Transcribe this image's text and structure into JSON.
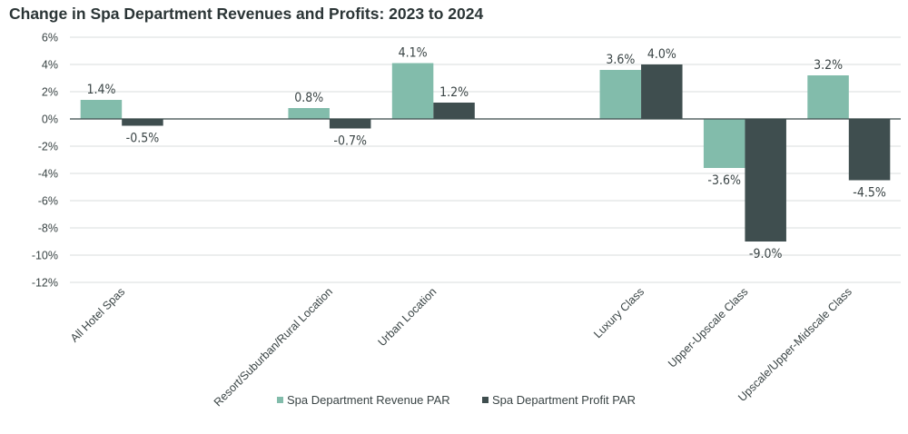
{
  "chart_data": {
    "type": "bar",
    "title": "Change in Spa Department Revenues and Profits:  2023 to 2024",
    "categories": [
      "All Hotel Spas",
      "",
      "Resort/Suburban/Rural Location",
      "Urban Location",
      "",
      "Luxury Class",
      "Upper-Upscale Class",
      "Upscale/Upper-Midscale Class"
    ],
    "series": [
      {
        "name": "Spa Department Revenue PAR",
        "color": "#82bcab",
        "values": [
          1.4,
          null,
          0.8,
          4.1,
          null,
          3.6,
          -3.6,
          3.2
        ],
        "labels": [
          "1.4%",
          "",
          "0.8%",
          "4.1%",
          "",
          "3.6%",
          "-3.6%",
          "3.2%"
        ]
      },
      {
        "name": "Spa Department Profit PAR",
        "color": "#3f4e4f",
        "values": [
          -0.5,
          null,
          -0.7,
          1.2,
          null,
          4.0,
          -9.0,
          -4.5
        ],
        "labels": [
          "-0.5%",
          "",
          "-0.7%",
          "1.2%",
          "",
          "4.0%",
          "-9.0%",
          "-4.5%"
        ]
      }
    ],
    "ylim": [
      -12,
      6
    ],
    "yticks": [
      "6%",
      "4%",
      "2%",
      "0%",
      "-2%",
      "-4%",
      "-6%",
      "-8%",
      "-10%",
      "-12%"
    ],
    "grid": true,
    "legend": "bottom"
  }
}
